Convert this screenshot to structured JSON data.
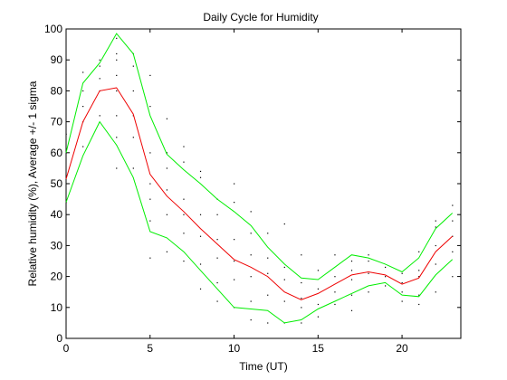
{
  "chart_data": {
    "type": "line",
    "title": "Daily Cycle for Humidity",
    "xlabel": "Time (UT)",
    "ylabel": "Relative humidity (%), Average +/- 1 sigma",
    "xlim": [
      0,
      23.5
    ],
    "ylim": [
      0,
      100
    ],
    "xticks": [
      0,
      5,
      10,
      15,
      20
    ],
    "yticks": [
      0,
      10,
      20,
      30,
      40,
      50,
      60,
      70,
      80,
      90,
      100
    ],
    "grid": false,
    "x": [
      0,
      1,
      2,
      3,
      4,
      5,
      6,
      7,
      8,
      9,
      10,
      11,
      12,
      13,
      14,
      15,
      16,
      17,
      18,
      19,
      20,
      21,
      22,
      23
    ],
    "series": [
      {
        "color": "#00ee00",
        "values": [
          60,
          82.5,
          89,
          98.5,
          92,
          72,
          59.5,
          54.5,
          50,
          45,
          41,
          36.5,
          29.5,
          24,
          19.5,
          19,
          23,
          27,
          26,
          24,
          21.5,
          26,
          35.5,
          40.5
        ]
      },
      {
        "color": "#ee0000",
        "values": [
          51.5,
          70,
          80,
          81,
          72.5,
          53,
          46,
          41,
          35.5,
          30.5,
          25.5,
          23,
          20,
          15,
          12.5,
          14.5,
          17.5,
          20.5,
          21.5,
          20.5,
          17.5,
          19.5,
          28,
          33
        ]
      },
      {
        "color": "#00ee00",
        "values": [
          44,
          59,
          70,
          62.5,
          52,
          34.5,
          32.5,
          28,
          22,
          16,
          10,
          9.5,
          9,
          5,
          6,
          9.5,
          12,
          14.5,
          17,
          18,
          14,
          13.5,
          20.5,
          25.5
        ]
      }
    ],
    "scatter_points": [
      [
        0,
        44
      ],
      [
        0,
        52
      ],
      [
        0,
        60
      ],
      [
        0,
        66
      ],
      [
        1,
        62
      ],
      [
        1,
        70
      ],
      [
        1,
        75
      ],
      [
        1,
        80
      ],
      [
        1,
        86
      ],
      [
        2,
        72
      ],
      [
        2,
        80
      ],
      [
        2,
        84
      ],
      [
        2,
        88
      ],
      [
        2,
        90
      ],
      [
        3,
        55
      ],
      [
        3,
        65
      ],
      [
        3,
        72
      ],
      [
        3,
        80
      ],
      [
        3,
        85
      ],
      [
        3,
        90
      ],
      [
        3,
        92
      ],
      [
        3,
        97
      ],
      [
        4,
        55
      ],
      [
        4,
        65
      ],
      [
        4,
        72
      ],
      [
        4,
        80
      ],
      [
        4,
        88
      ],
      [
        4,
        92
      ],
      [
        5,
        26
      ],
      [
        5,
        38
      ],
      [
        5,
        45
      ],
      [
        5,
        50
      ],
      [
        5,
        60
      ],
      [
        5,
        75
      ],
      [
        5,
        85
      ],
      [
        6,
        28
      ],
      [
        6,
        40
      ],
      [
        6,
        48
      ],
      [
        6,
        55
      ],
      [
        6,
        60
      ],
      [
        6,
        71
      ],
      [
        7,
        25
      ],
      [
        7,
        34
      ],
      [
        7,
        40
      ],
      [
        7,
        45
      ],
      [
        7,
        57
      ],
      [
        7,
        62
      ],
      [
        8,
        16
      ],
      [
        8,
        24
      ],
      [
        8,
        33
      ],
      [
        8,
        40
      ],
      [
        8,
        52
      ],
      [
        8,
        54
      ],
      [
        9,
        12
      ],
      [
        9,
        18
      ],
      [
        9,
        26
      ],
      [
        9,
        32
      ],
      [
        9,
        40
      ],
      [
        9,
        45
      ],
      [
        10,
        10
      ],
      [
        10,
        19
      ],
      [
        10,
        25
      ],
      [
        10,
        32
      ],
      [
        10,
        44
      ],
      [
        10,
        50
      ],
      [
        11,
        6
      ],
      [
        11,
        12
      ],
      [
        11,
        20
      ],
      [
        11,
        27
      ],
      [
        11,
        34
      ],
      [
        11,
        41
      ],
      [
        12,
        5
      ],
      [
        12,
        14
      ],
      [
        12,
        21
      ],
      [
        12,
        26
      ],
      [
        12,
        34
      ],
      [
        13,
        5
      ],
      [
        13,
        12
      ],
      [
        13,
        19
      ],
      [
        13,
        23
      ],
      [
        13,
        37
      ],
      [
        14,
        5
      ],
      [
        14,
        10
      ],
      [
        14,
        13
      ],
      [
        14,
        18
      ],
      [
        14,
        27
      ],
      [
        15,
        7
      ],
      [
        15,
        11
      ],
      [
        15,
        16
      ],
      [
        15,
        22
      ],
      [
        16,
        11
      ],
      [
        16,
        15
      ],
      [
        16,
        20
      ],
      [
        16,
        27
      ],
      [
        17,
        9
      ],
      [
        17,
        14
      ],
      [
        17,
        19
      ],
      [
        17,
        22
      ],
      [
        17,
        25
      ],
      [
        18,
        15
      ],
      [
        18,
        21
      ],
      [
        18,
        25
      ],
      [
        18,
        27
      ],
      [
        19,
        17
      ],
      [
        19,
        20
      ],
      [
        19,
        23
      ],
      [
        20,
        12
      ],
      [
        20,
        15
      ],
      [
        20,
        18
      ],
      [
        20,
        21
      ],
      [
        21,
        11
      ],
      [
        21,
        14
      ],
      [
        21,
        20
      ],
      [
        21,
        22
      ],
      [
        21,
        28
      ],
      [
        22,
        15
      ],
      [
        22,
        24
      ],
      [
        22,
        30
      ],
      [
        22,
        36
      ],
      [
        22,
        38
      ],
      [
        23,
        20
      ],
      [
        23,
        28
      ],
      [
        23,
        33
      ],
      [
        23,
        38
      ],
      [
        23,
        43
      ]
    ]
  }
}
